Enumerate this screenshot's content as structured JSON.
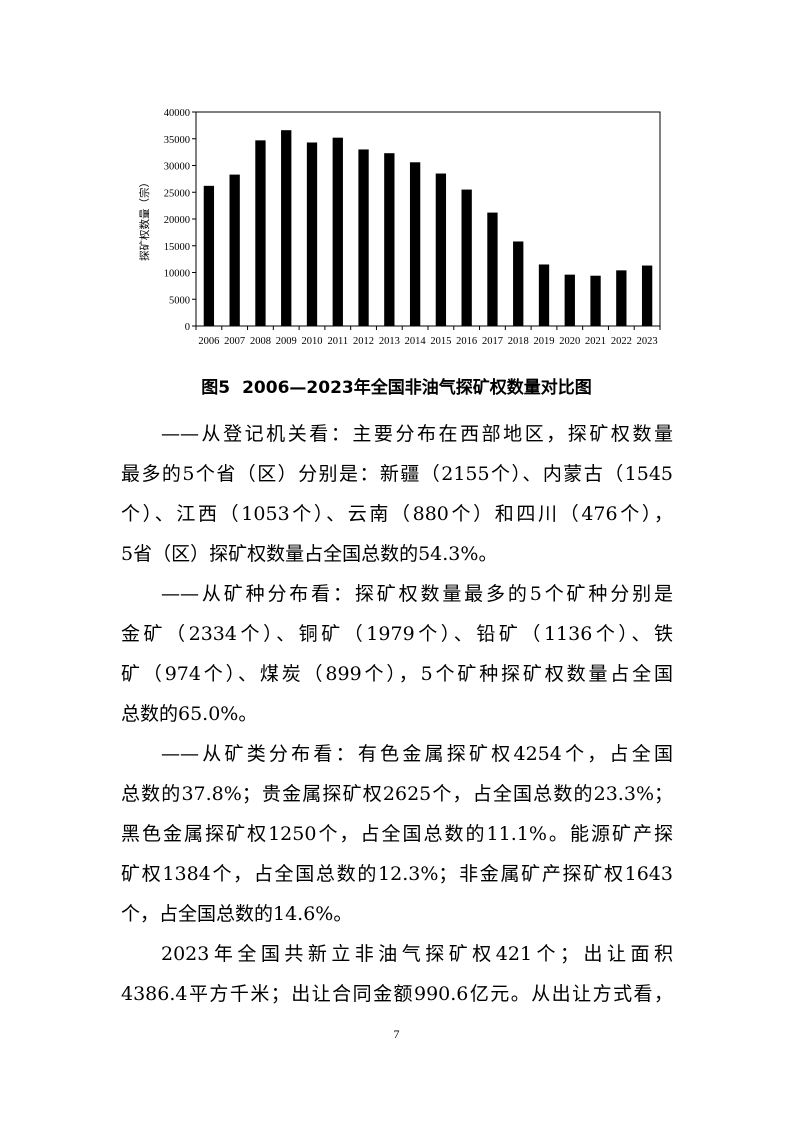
{
  "chart_data": {
    "type": "bar",
    "title": "",
    "xlabel": "",
    "ylabel": "探矿权数量（宗）",
    "ylim": [
      0,
      40000
    ],
    "yticks": [
      0,
      5000,
      10000,
      15000,
      20000,
      25000,
      30000,
      35000,
      40000
    ],
    "grid": false,
    "bar_color": "#000000",
    "categories": [
      "2006",
      "2007",
      "2008",
      "2009",
      "2010",
      "2011",
      "2012",
      "2013",
      "2014",
      "2015",
      "2016",
      "2017",
      "2018",
      "2019",
      "2020",
      "2021",
      "2022",
      "2023"
    ],
    "values": [
      26200,
      28300,
      34700,
      36600,
      34300,
      35200,
      33000,
      32300,
      30600,
      28500,
      25500,
      21200,
      15800,
      11500,
      9600,
      9400,
      10400,
      11300
    ]
  },
  "caption": {
    "label": "图5",
    "text": "2006—2023年全国非油气探矿权数量对比图"
  },
  "lines": [
    "——从登记机关看：主要分布在西部地区，探矿权数量",
    "最多的5个省（区）分别是：新疆（2155个）、内蒙古（1545",
    "个）、江西（1053个）、云南（880个）和四川（476个），",
    "5省（区）探矿权数量占全国总数的54.3%。",
    "——从矿种分布看：探矿权数量最多的5个矿种分别是",
    "金矿（2334个）、铜矿（1979个）、铅矿（1136个）、铁",
    "矿（974个）、煤炭（899个），5个矿种探矿权数量占全国",
    "总数的65.0%。",
    "——从矿类分布看：有色金属探矿权4254个，占全国",
    "总数的37.8%；贵金属探矿权2625个，占全国总数的23.3%；",
    "黑色金属探矿权1250个，占全国总数的11.1%。能源矿产探",
    "矿权1384个，占全国总数的12.3%；非金属矿产探矿权1643",
    "个，占全国总数的14.6%。",
    "2023年全国共新立非油气探矿权421个；出让面积",
    "4386.4平方千米；出让合同金额990.6亿元。从出让方式看，"
  ],
  "page_number": "7"
}
